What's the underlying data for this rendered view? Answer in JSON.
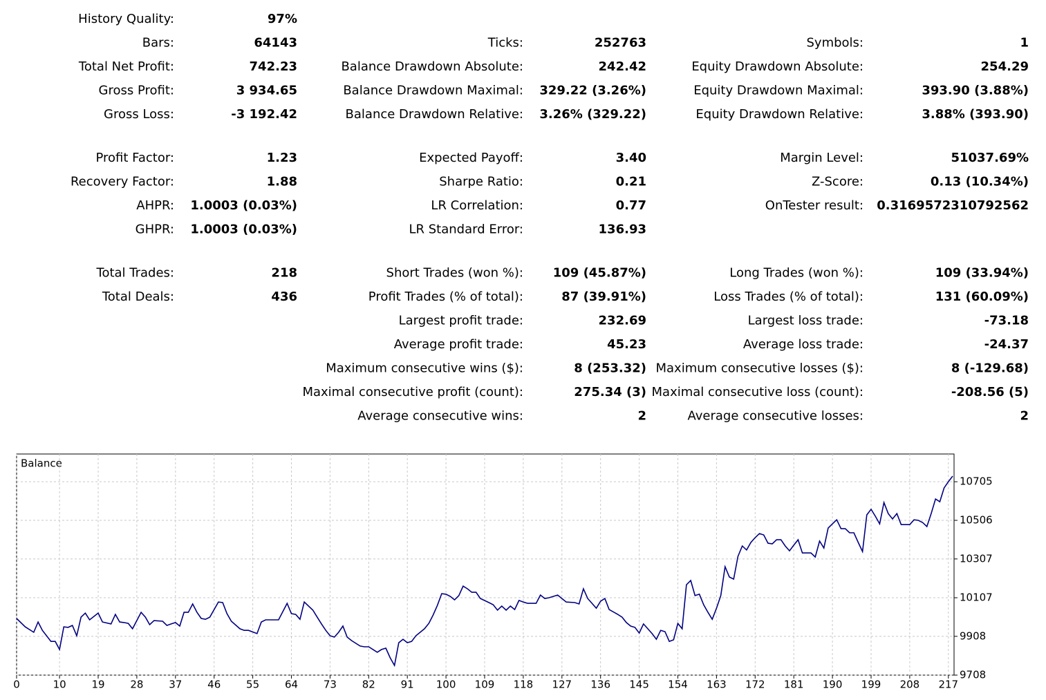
{
  "stats": {
    "groups": [
      {
        "rows": [
          [
            {
              "label": "History Quality:",
              "value": "97%"
            },
            null,
            null
          ],
          [
            {
              "label": "Bars:",
              "value": "64143"
            },
            {
              "label": "Ticks:",
              "value": "252763"
            },
            {
              "label": "Symbols:",
              "value": "1"
            }
          ],
          [
            {
              "label": "Total Net Profit:",
              "value": "742.23"
            },
            {
              "label": "Balance Drawdown Absolute:",
              "value": "242.42"
            },
            {
              "label": "Equity Drawdown Absolute:",
              "value": "254.29"
            }
          ],
          [
            {
              "label": "Gross Profit:",
              "value": "3 934.65"
            },
            {
              "label": "Balance Drawdown Maximal:",
              "value": "329.22 (3.26%)"
            },
            {
              "label": "Equity Drawdown Maximal:",
              "value": "393.90 (3.88%)"
            }
          ],
          [
            {
              "label": "Gross Loss:",
              "value": "-3 192.42"
            },
            {
              "label": "Balance Drawdown Relative:",
              "value": "3.26% (329.22)"
            },
            {
              "label": "Equity Drawdown Relative:",
              "value": "3.88% (393.90)"
            }
          ]
        ]
      },
      {
        "rows": [
          [
            {
              "label": "Profit Factor:",
              "value": "1.23"
            },
            {
              "label": "Expected Payoff:",
              "value": "3.40"
            },
            {
              "label": "Margin Level:",
              "value": "51037.69%"
            }
          ],
          [
            {
              "label": "Recovery Factor:",
              "value": "1.88"
            },
            {
              "label": "Sharpe Ratio:",
              "value": "0.21"
            },
            {
              "label": "Z-Score:",
              "value": "0.13 (10.34%)"
            }
          ],
          [
            {
              "label": "AHPR:",
              "value": "1.0003 (0.03%)"
            },
            {
              "label": "LR Correlation:",
              "value": "0.77"
            },
            {
              "label": "OnTester result:",
              "value": "0.3169572310792562"
            }
          ],
          [
            {
              "label": "GHPR:",
              "value": "1.0003 (0.03%)"
            },
            {
              "label": "LR Standard Error:",
              "value": "136.93"
            },
            null
          ]
        ]
      },
      {
        "rows": [
          [
            {
              "label": "Total Trades:",
              "value": "218"
            },
            {
              "label": "Short Trades (won %):",
              "value": "109 (45.87%)"
            },
            {
              "label": "Long Trades (won %):",
              "value": "109 (33.94%)"
            }
          ],
          [
            {
              "label": "Total Deals:",
              "value": "436"
            },
            {
              "label": "Profit Trades (% of total):",
              "value": "87 (39.91%)"
            },
            {
              "label": "Loss Trades (% of total):",
              "value": "131 (60.09%)"
            }
          ],
          [
            null,
            {
              "label": "Largest profit trade:",
              "value": "232.69"
            },
            {
              "label": "Largest loss trade:",
              "value": "-73.18"
            }
          ],
          [
            null,
            {
              "label": "Average profit trade:",
              "value": "45.23"
            },
            {
              "label": "Average loss trade:",
              "value": "-24.37"
            }
          ],
          [
            null,
            {
              "label": "Maximum consecutive wins ($):",
              "value": "8 (253.32)"
            },
            {
              "label": "Maximum consecutive losses ($):",
              "value": "8 (-129.68)"
            }
          ],
          [
            null,
            {
              "label": "Maximal consecutive profit (count):",
              "value": "275.34 (3)"
            },
            {
              "label": "Maximal consecutive loss (count):",
              "value": "-208.56 (5)"
            }
          ],
          [
            null,
            {
              "label": "Average consecutive wins:",
              "value": "2"
            },
            {
              "label": "Average consecutive losses:",
              "value": "2"
            }
          ]
        ]
      }
    ]
  },
  "chart_data": {
    "type": "line",
    "title": "Balance",
    "color": "#000080",
    "grid": true,
    "x": [
      0,
      2,
      4,
      5,
      6,
      8,
      9,
      10,
      11,
      12,
      13,
      14,
      15,
      16,
      17,
      19,
      20,
      22,
      23,
      24,
      25,
      26,
      27,
      29,
      30,
      31,
      32,
      34,
      35,
      36,
      37,
      38,
      39,
      40,
      41,
      42,
      43,
      44,
      45,
      47,
      48,
      49,
      50,
      52,
      53,
      54,
      56,
      57,
      58,
      60,
      61,
      63,
      64,
      65,
      66,
      67,
      69,
      70,
      71,
      72,
      73,
      74,
      75,
      76,
      77,
      78,
      80,
      81,
      82,
      83,
      84,
      85,
      86,
      87,
      88,
      89,
      90,
      91,
      92,
      93,
      95,
      96,
      97,
      98,
      99,
      100,
      101,
      102,
      103,
      104,
      105,
      106,
      107,
      108,
      110,
      111,
      112,
      113,
      114,
      115,
      116,
      117,
      118,
      119,
      121,
      122,
      123,
      124,
      126,
      127,
      128,
      130,
      131,
      132,
      133,
      135,
      136,
      137,
      138,
      140,
      141,
      142,
      143,
      144,
      145,
      146,
      147,
      148,
      149,
      150,
      151,
      152,
      153,
      154,
      155,
      156,
      157,
      158,
      159,
      160,
      161,
      162,
      163,
      164,
      165,
      166,
      167,
      168,
      169,
      170,
      171,
      172,
      173,
      174,
      175,
      176,
      177,
      178,
      179,
      180,
      181,
      182,
      183,
      184,
      185,
      186,
      187,
      188,
      189,
      190,
      191,
      192,
      193,
      194,
      195,
      196,
      197,
      198,
      199,
      200,
      201,
      202,
      203,
      204,
      205,
      206,
      207,
      208,
      209,
      210,
      211,
      212,
      213,
      214,
      215,
      216,
      217,
      218
    ],
    "values": [
      10000,
      9957,
      9929,
      9982,
      9939,
      9882,
      9882,
      9840,
      9957,
      9954,
      9964,
      9911,
      10007,
      10028,
      9993,
      10028,
      9982,
      9972,
      10021,
      9982,
      9979,
      9975,
      9947,
      10032,
      10007,
      9968,
      9989,
      9986,
      9964,
      9972,
      9979,
      9961,
      10032,
      10032,
      10075,
      10032,
      10000,
      9996,
      10007,
      10085,
      10082,
      10025,
      9986,
      9947,
      9939,
      9939,
      9922,
      9982,
      9993,
      9993,
      9993,
      10078,
      10025,
      10021,
      9996,
      10085,
      10043,
      10007,
      9972,
      9939,
      9911,
      9904,
      9929,
      9961,
      9904,
      9886,
      9858,
      9854,
      9854,
      9840,
      9826,
      9840,
      9847,
      9797,
      9758,
      9875,
      9893,
      9875,
      9882,
      9911,
      9947,
      9975,
      10018,
      10068,
      10128,
      10125,
      10114,
      10096,
      10118,
      10167,
      10153,
      10135,
      10135,
      10103,
      10082,
      10071,
      10043,
      10064,
      10043,
      10064,
      10046,
      10093,
      10085,
      10078,
      10078,
      10121,
      10103,
      10107,
      10121,
      10103,
      10085,
      10082,
      10075,
      10153,
      10103,
      10053,
      10089,
      10103,
      10046,
      10021,
      10007,
      9979,
      9961,
      9954,
      9925,
      9972,
      9947,
      9922,
      9893,
      9939,
      9932,
      9882,
      9890,
      9975,
      9947,
      10174,
      10196,
      10118,
      10125,
      10071,
      10032,
      9996,
      10053,
      10118,
      10267,
      10214,
      10203,
      10320,
      10374,
      10353,
      10392,
      10417,
      10438,
      10431,
      10388,
      10385,
      10406,
      10406,
      10374,
      10349,
      10378,
      10406,
      10338,
      10338,
      10338,
      10317,
      10399,
      10363,
      10466,
      10488,
      10509,
      10463,
      10463,
      10442,
      10442,
      10392,
      10345,
      10534,
      10563,
      10527,
      10488,
      10598,
      10541,
      10513,
      10541,
      10484,
      10484,
      10484,
      10509,
      10506,
      10495,
      10474,
      10541,
      10616,
      10602,
      10673,
      10705,
      10734
    ],
    "xlim": [
      0,
      218
    ],
    "xticks": [
      0,
      10,
      19,
      28,
      37,
      46,
      55,
      64,
      73,
      82,
      91,
      100,
      109,
      118,
      127,
      136,
      145,
      154,
      163,
      172,
      181,
      190,
      199,
      208,
      217
    ],
    "ylim": [
      9708,
      10848
    ],
    "yticks": [
      9708,
      9908,
      10107,
      10307,
      10506,
      10705
    ]
  }
}
